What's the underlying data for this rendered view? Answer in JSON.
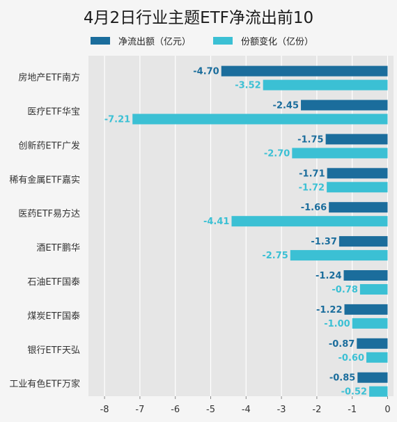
{
  "colors": {
    "outflow": "#1b6d9c",
    "share": "#3bc0d4",
    "plot_bg": "#e6e6e6",
    "grid": "#ffffff",
    "page_bg": "#f5f5f5"
  },
  "chart_data": {
    "type": "bar",
    "orientation": "horizontal",
    "title": "4月2日行业主题ETF净流出前10",
    "legend_position": "top",
    "grid": true,
    "xlim": [
      -8.5,
      0
    ],
    "xticks": [
      -8,
      -7,
      -6,
      -5,
      -4,
      -3,
      -2,
      -1,
      0
    ],
    "categories": [
      "房地产ETF南方",
      "医疗ETF华宝",
      "创新药ETF广发",
      "稀有金属ETF嘉实",
      "医药ETF易方达",
      "酒ETF鹏华",
      "石油ETF国泰",
      "煤炭ETF国泰",
      "银行ETF天弘",
      "工业有色ETF万家"
    ],
    "series": [
      {
        "name": "净流出额（亿元）",
        "values": [
          -4.7,
          -2.45,
          -1.75,
          -1.71,
          -1.66,
          -1.37,
          -1.24,
          -1.22,
          -0.87,
          -0.85
        ],
        "labels": [
          "-4.70",
          "-2.45",
          "-1.75",
          "-1.71",
          "-1.66",
          "-1.37",
          "-1.24",
          "-1.22",
          "-0.87",
          "-0.85"
        ]
      },
      {
        "name": "份额变化（亿份）",
        "values": [
          -3.52,
          -7.21,
          -2.7,
          -1.72,
          -4.41,
          -2.75,
          -0.78,
          -1.0,
          -0.6,
          -0.52
        ],
        "labels": [
          "-3.52",
          "-7.21",
          "-2.70",
          "-1.72",
          "-4.41",
          "-2.75",
          "-0.78",
          "-1.00",
          "-0.60",
          "-0.52"
        ]
      }
    ]
  }
}
